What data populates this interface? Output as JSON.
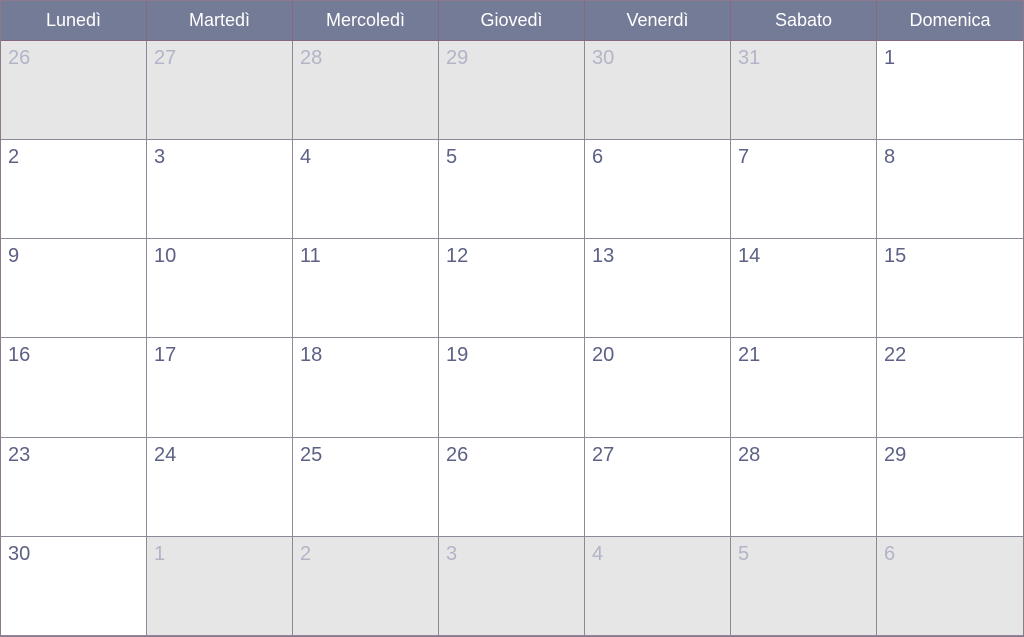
{
  "weekdays": [
    "Lunedì",
    "Martedì",
    "Mercoledì",
    "Giovedì",
    "Venerdì",
    "Sabato",
    "Domenica"
  ],
  "weeks": [
    [
      {
        "day": "26",
        "current": false
      },
      {
        "day": "27",
        "current": false
      },
      {
        "day": "28",
        "current": false
      },
      {
        "day": "29",
        "current": false
      },
      {
        "day": "30",
        "current": false
      },
      {
        "day": "31",
        "current": false
      },
      {
        "day": "1",
        "current": true
      }
    ],
    [
      {
        "day": "2",
        "current": true
      },
      {
        "day": "3",
        "current": true
      },
      {
        "day": "4",
        "current": true
      },
      {
        "day": "5",
        "current": true
      },
      {
        "day": "6",
        "current": true
      },
      {
        "day": "7",
        "current": true
      },
      {
        "day": "8",
        "current": true
      }
    ],
    [
      {
        "day": "9",
        "current": true
      },
      {
        "day": "10",
        "current": true
      },
      {
        "day": "11",
        "current": true
      },
      {
        "day": "12",
        "current": true
      },
      {
        "day": "13",
        "current": true
      },
      {
        "day": "14",
        "current": true
      },
      {
        "day": "15",
        "current": true
      }
    ],
    [
      {
        "day": "16",
        "current": true
      },
      {
        "day": "17",
        "current": true
      },
      {
        "day": "18",
        "current": true
      },
      {
        "day": "19",
        "current": true
      },
      {
        "day": "20",
        "current": true
      },
      {
        "day": "21",
        "current": true
      },
      {
        "day": "22",
        "current": true
      }
    ],
    [
      {
        "day": "23",
        "current": true
      },
      {
        "day": "24",
        "current": true
      },
      {
        "day": "25",
        "current": true
      },
      {
        "day": "26",
        "current": true
      },
      {
        "day": "27",
        "current": true
      },
      {
        "day": "28",
        "current": true
      },
      {
        "day": "29",
        "current": true
      }
    ],
    [
      {
        "day": "30",
        "current": true
      },
      {
        "day": "1",
        "current": false
      },
      {
        "day": "2",
        "current": false
      },
      {
        "day": "3",
        "current": false
      },
      {
        "day": "4",
        "current": false
      },
      {
        "day": "5",
        "current": false
      },
      {
        "day": "6",
        "current": false
      }
    ]
  ],
  "colors": {
    "header_bg": "#737b97",
    "header_text": "#ffffff",
    "day_text": "#5c6185",
    "outside_day_text": "#b2b4c8",
    "outside_bg": "#e6e6e6"
  }
}
